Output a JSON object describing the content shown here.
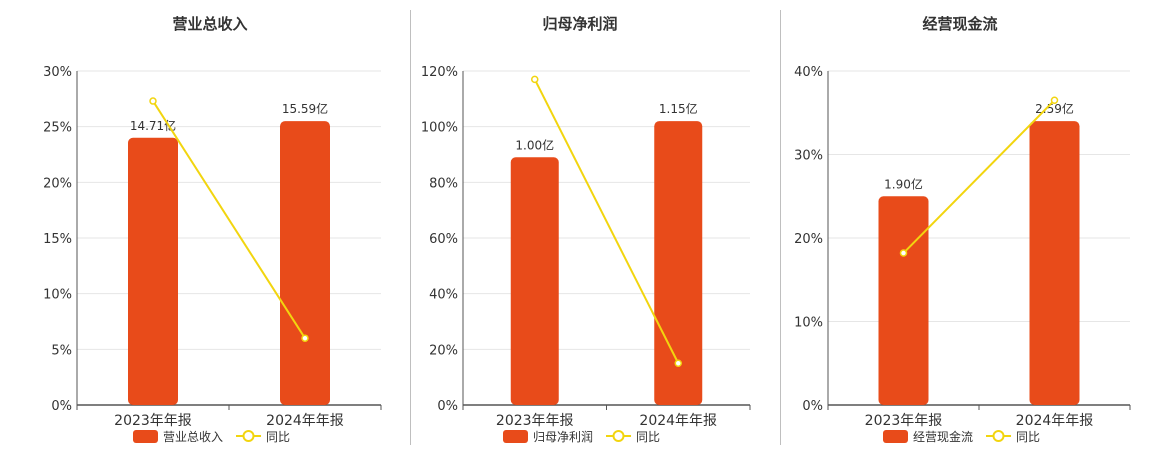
{
  "colors": {
    "bar": "#e84b1a",
    "line": "#f2d50f",
    "axis": "#555555",
    "grid": "#e6e6e6",
    "text": "#333333"
  },
  "chart_data": [
    {
      "type": "bar",
      "title": "营业总收入",
      "categories": [
        "2023年年报",
        "2024年年报"
      ],
      "bar_labels": [
        "14.71亿",
        "15.59亿"
      ],
      "ylim": [
        0,
        30
      ],
      "yticks": [
        "0%",
        "5%",
        "10%",
        "15%",
        "20%",
        "25%",
        "30%"
      ],
      "grid": true,
      "legend": "bottom",
      "series": [
        {
          "name": "营业总收入",
          "type": "bar",
          "values": [
            24.0,
            25.5
          ]
        },
        {
          "name": "同比",
          "type": "line",
          "values": [
            27.3,
            6.0
          ]
        }
      ]
    },
    {
      "type": "bar",
      "title": "归母净利润",
      "categories": [
        "2023年年报",
        "2024年年报"
      ],
      "bar_labels": [
        "1.00亿",
        "1.15亿"
      ],
      "ylim": [
        0,
        120
      ],
      "yticks": [
        "0%",
        "20%",
        "40%",
        "60%",
        "80%",
        "100%",
        "120%"
      ],
      "grid": true,
      "legend": "bottom",
      "series": [
        {
          "name": "归母净利润",
          "type": "bar",
          "values": [
            89,
            102
          ]
        },
        {
          "name": "同比",
          "type": "line",
          "values": [
            117,
            15
          ]
        }
      ]
    },
    {
      "type": "bar",
      "title": "经营现金流",
      "categories": [
        "2023年年报",
        "2024年年报"
      ],
      "bar_labels": [
        "1.90亿",
        "2.59亿"
      ],
      "ylim": [
        0,
        40
      ],
      "yticks": [
        "0%",
        "10%",
        "20%",
        "30%",
        "40%"
      ],
      "grid": true,
      "legend": "bottom",
      "series": [
        {
          "name": "经营现金流",
          "type": "bar",
          "values": [
            25,
            34
          ]
        },
        {
          "name": "同比",
          "type": "line",
          "values": [
            18.2,
            36.5
          ]
        }
      ]
    }
  ]
}
